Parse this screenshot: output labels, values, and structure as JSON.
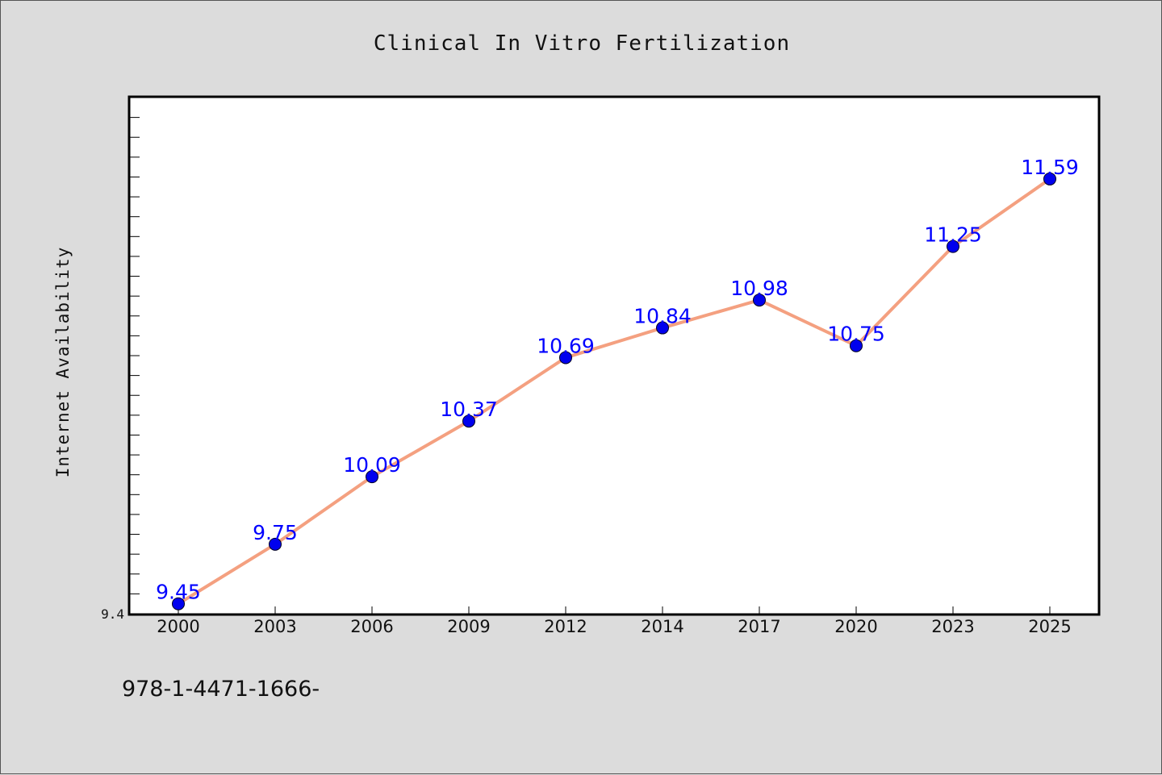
{
  "chart_data": {
    "type": "line",
    "title": "Clinical In Vitro Fertilization",
    "xlabel": "",
    "ylabel": "Internet Availability",
    "categories": [
      "2000",
      "2003",
      "2006",
      "2009",
      "2012",
      "2014",
      "2017",
      "2020",
      "2023",
      "2025"
    ],
    "series": [
      {
        "values": [
          9.45,
          9.75,
          10.09,
          10.37,
          10.69,
          10.84,
          10.98,
          10.75,
          11.25,
          11.59
        ],
        "labels": [
          "9.45",
          "9.75",
          "10.09",
          "10.37",
          "10.69",
          "10.84",
          "10.98",
          "10.75",
          "11.25",
          "11.59"
        ]
      }
    ],
    "y_tick_labels": [
      "9.4"
    ],
    "ylim": [
      9.4,
      12.0
    ],
    "grid": false,
    "colors": {
      "line": "#f4a080",
      "marker": "#0000ee",
      "data_label": "#0000ff",
      "plot_background": "#ffffff",
      "figure_background": "#dcdcdc"
    }
  },
  "footer": {
    "text": "978-1-4471-1666-"
  }
}
